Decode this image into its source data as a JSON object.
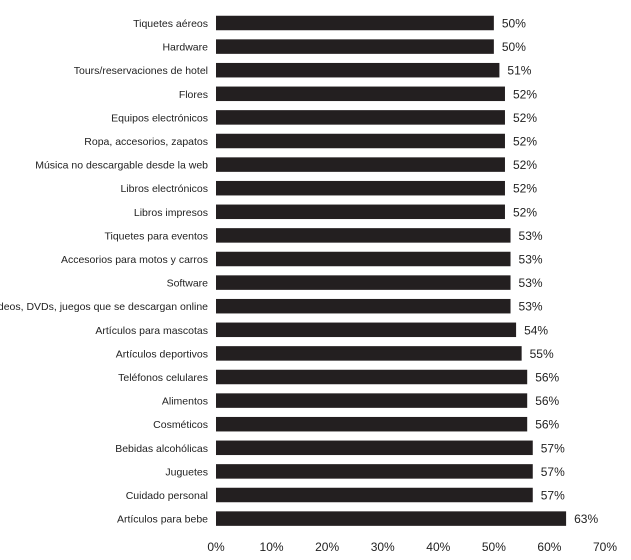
{
  "chart_data": {
    "type": "bar",
    "orientation": "horizontal",
    "title": "",
    "xlabel": "",
    "ylabel": "",
    "categories": [
      "Tiquetes aéreos",
      "Hardware",
      "Tours/reservaciones de hotel",
      "Flores",
      "Equipos electrónicos",
      "Ropa, accesorios, zapatos",
      "Música no descargable desde la web",
      "Libros electrónicos",
      "Libros impresos",
      "Tiquetes para eventos",
      "Accesorios para motos y carros",
      "Software",
      "Videos, DVDs, juegos que se descargan online",
      "Artículos para mascotas",
      "Artículos deportivos",
      "Teléfonos celulares",
      "Alimentos",
      "Cosméticos",
      "Bebidas alcohólicas",
      "Juguetes",
      "Cuidado personal",
      "Artículos para bebe"
    ],
    "values": [
      50,
      50,
      51,
      52,
      52,
      52,
      52,
      52,
      52,
      53,
      53,
      53,
      53,
      54,
      55,
      56,
      56,
      56,
      57,
      57,
      57,
      63
    ],
    "value_labels": [
      "50%",
      "50%",
      "51%",
      "52%",
      "52%",
      "52%",
      "52%",
      "52%",
      "52%",
      "53%",
      "53%",
      "53%",
      "53%",
      "54%",
      "55%",
      "56%",
      "56%",
      "56%",
      "57%",
      "57%",
      "57%",
      "63%"
    ],
    "xlim": [
      0,
      70
    ],
    "x_ticks": [
      0,
      10,
      20,
      30,
      40,
      50,
      60,
      70
    ],
    "x_tick_labels": [
      "0%",
      "10%",
      "20%",
      "30%",
      "40%",
      "50%",
      "60%",
      "70%"
    ],
    "bar_color": "#231f20",
    "grid": false,
    "legend": "none"
  }
}
